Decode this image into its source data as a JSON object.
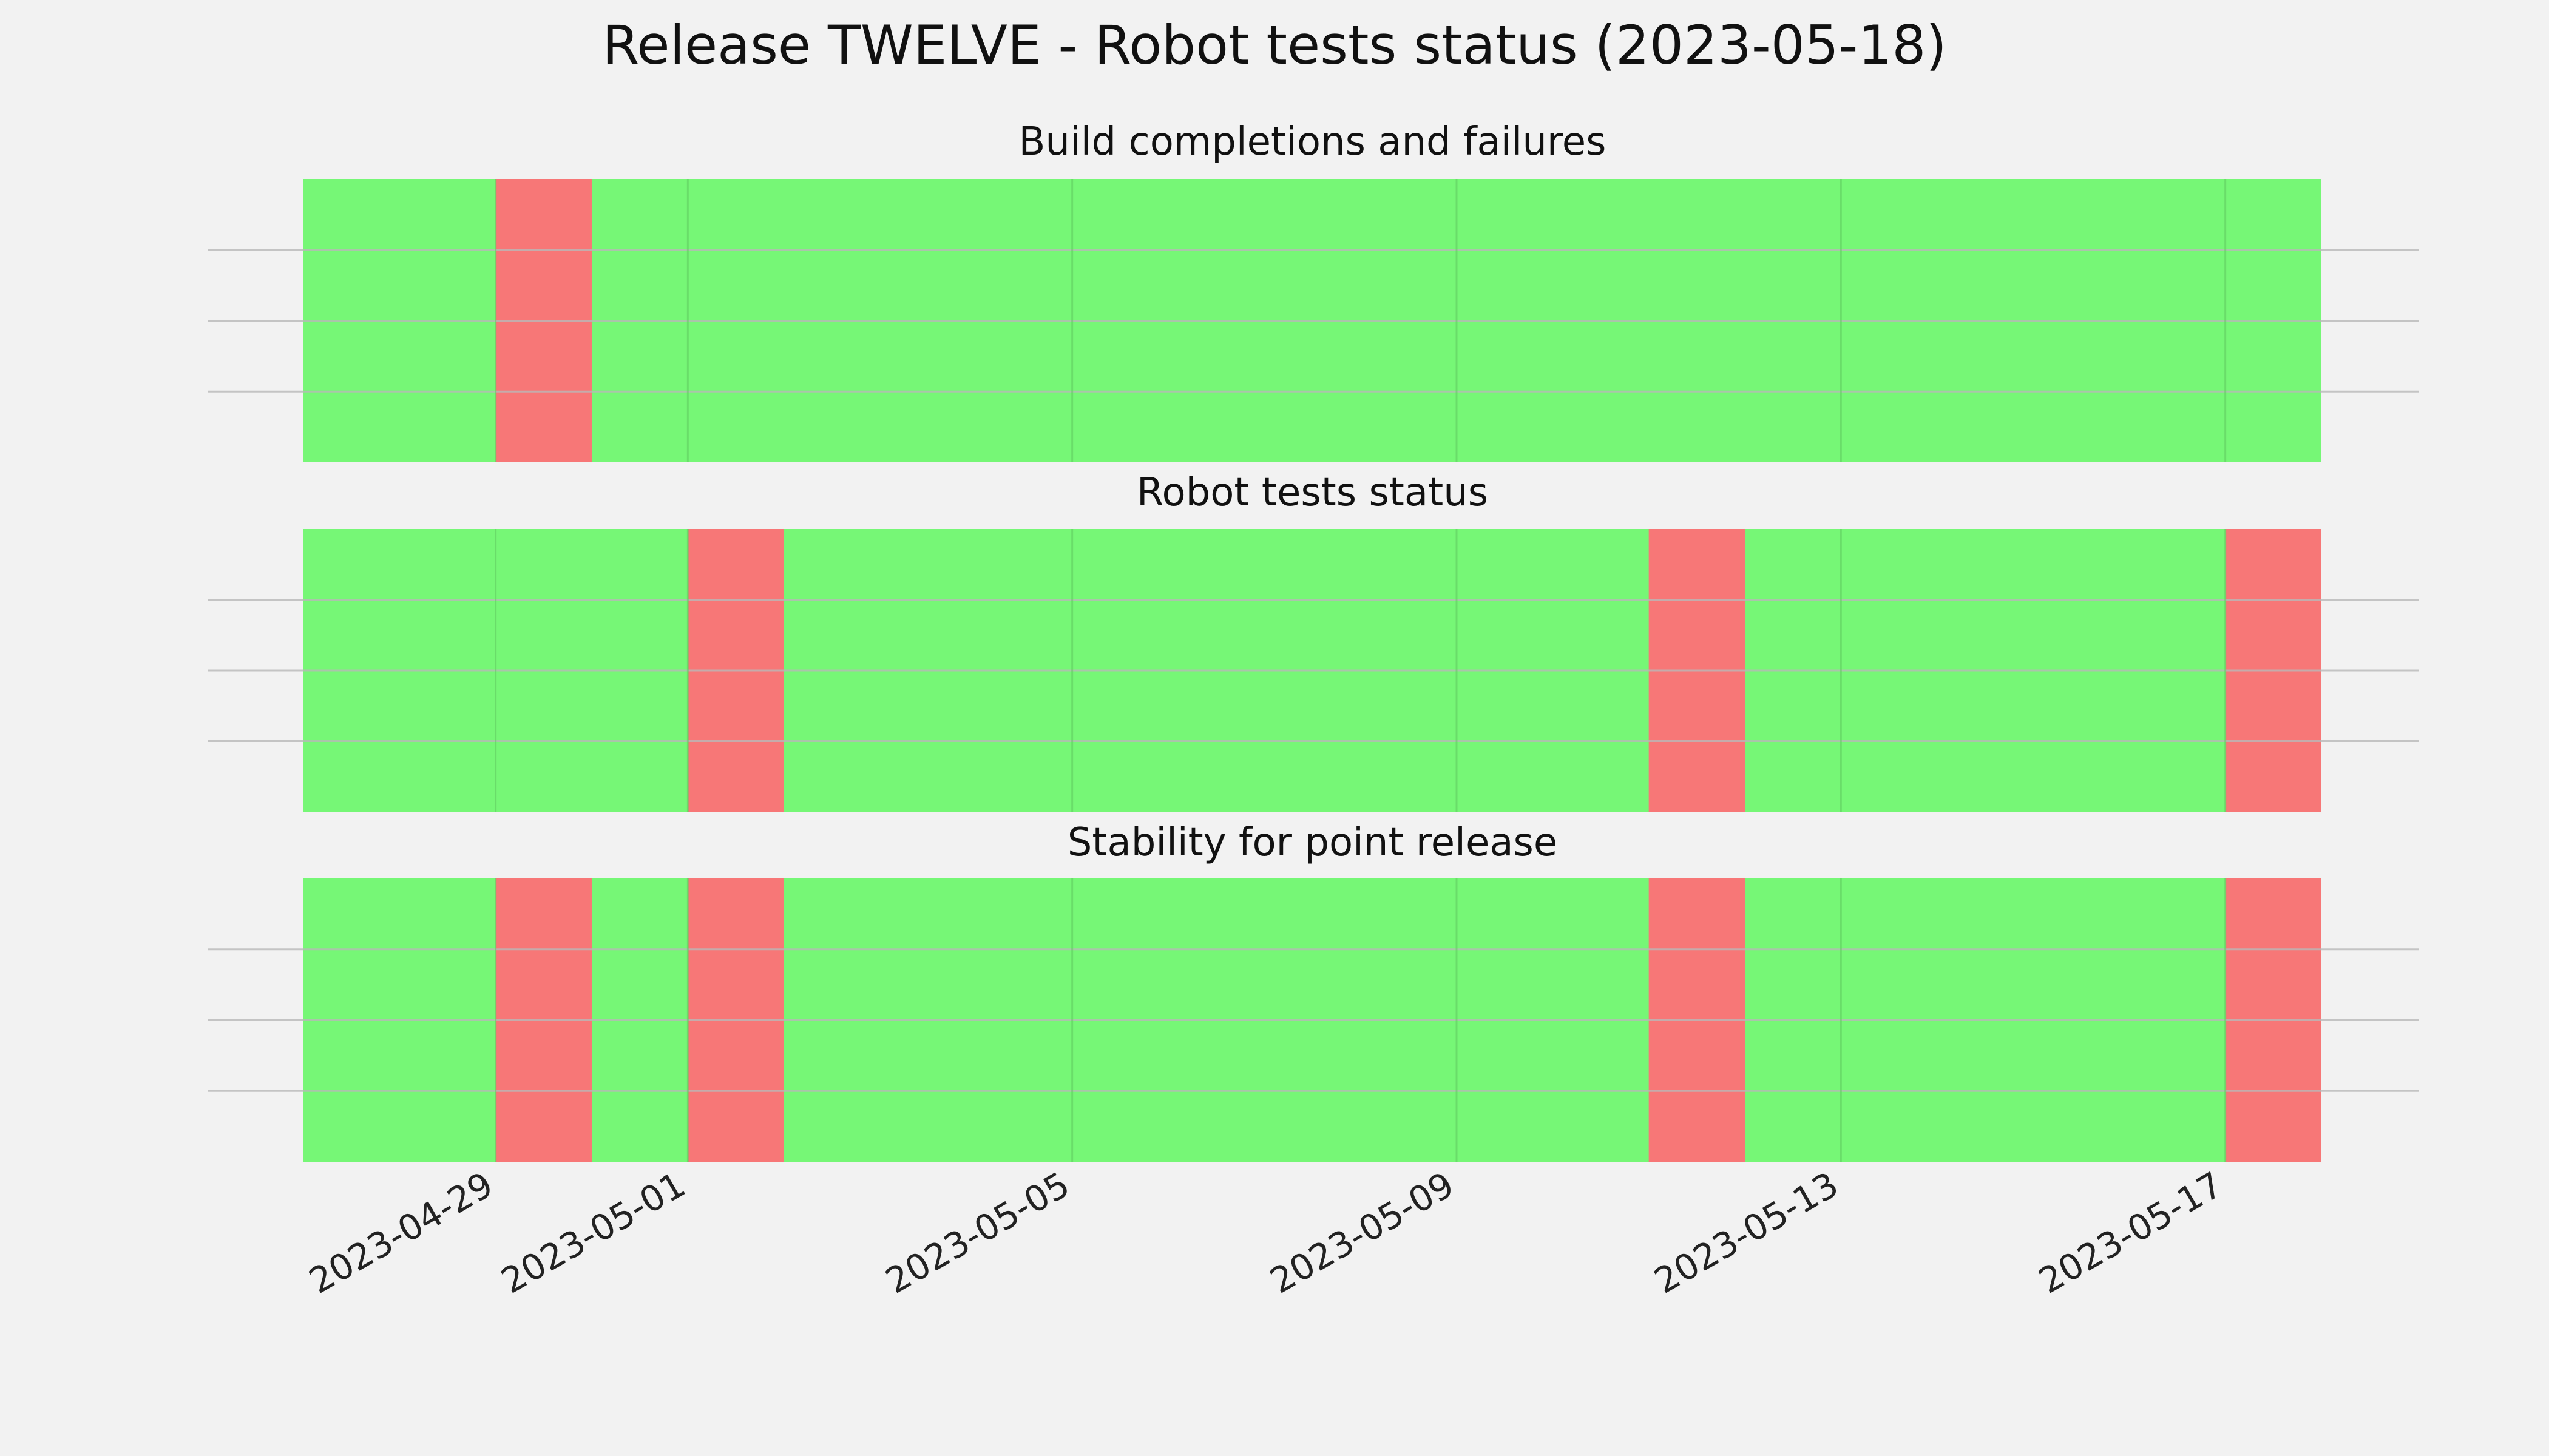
{
  "chart_data": {
    "type": "timeline-status",
    "title": "Release TWELVE - Robot tests status (2023-05-18)",
    "x_range": [
      "2023-04-27",
      "2023-05-18"
    ],
    "x_ticks": [
      "2023-04-29",
      "2023-05-01",
      "2023-05-05",
      "2023-05-09",
      "2023-05-13",
      "2023-05-17"
    ],
    "grid": true,
    "status_colors": {
      "pass": "#76f776",
      "fail": "#f77777"
    },
    "panels": [
      {
        "title": "Build completions and failures",
        "fail_days": [
          "2023-04-29"
        ]
      },
      {
        "title": "Robot tests status",
        "fail_days": [
          "2023-05-01",
          "2023-05-11",
          "2023-05-17"
        ]
      },
      {
        "title": "Stability for point release",
        "fail_days": [
          "2023-04-29",
          "2023-05-01",
          "2023-05-11",
          "2023-05-17"
        ]
      }
    ]
  }
}
